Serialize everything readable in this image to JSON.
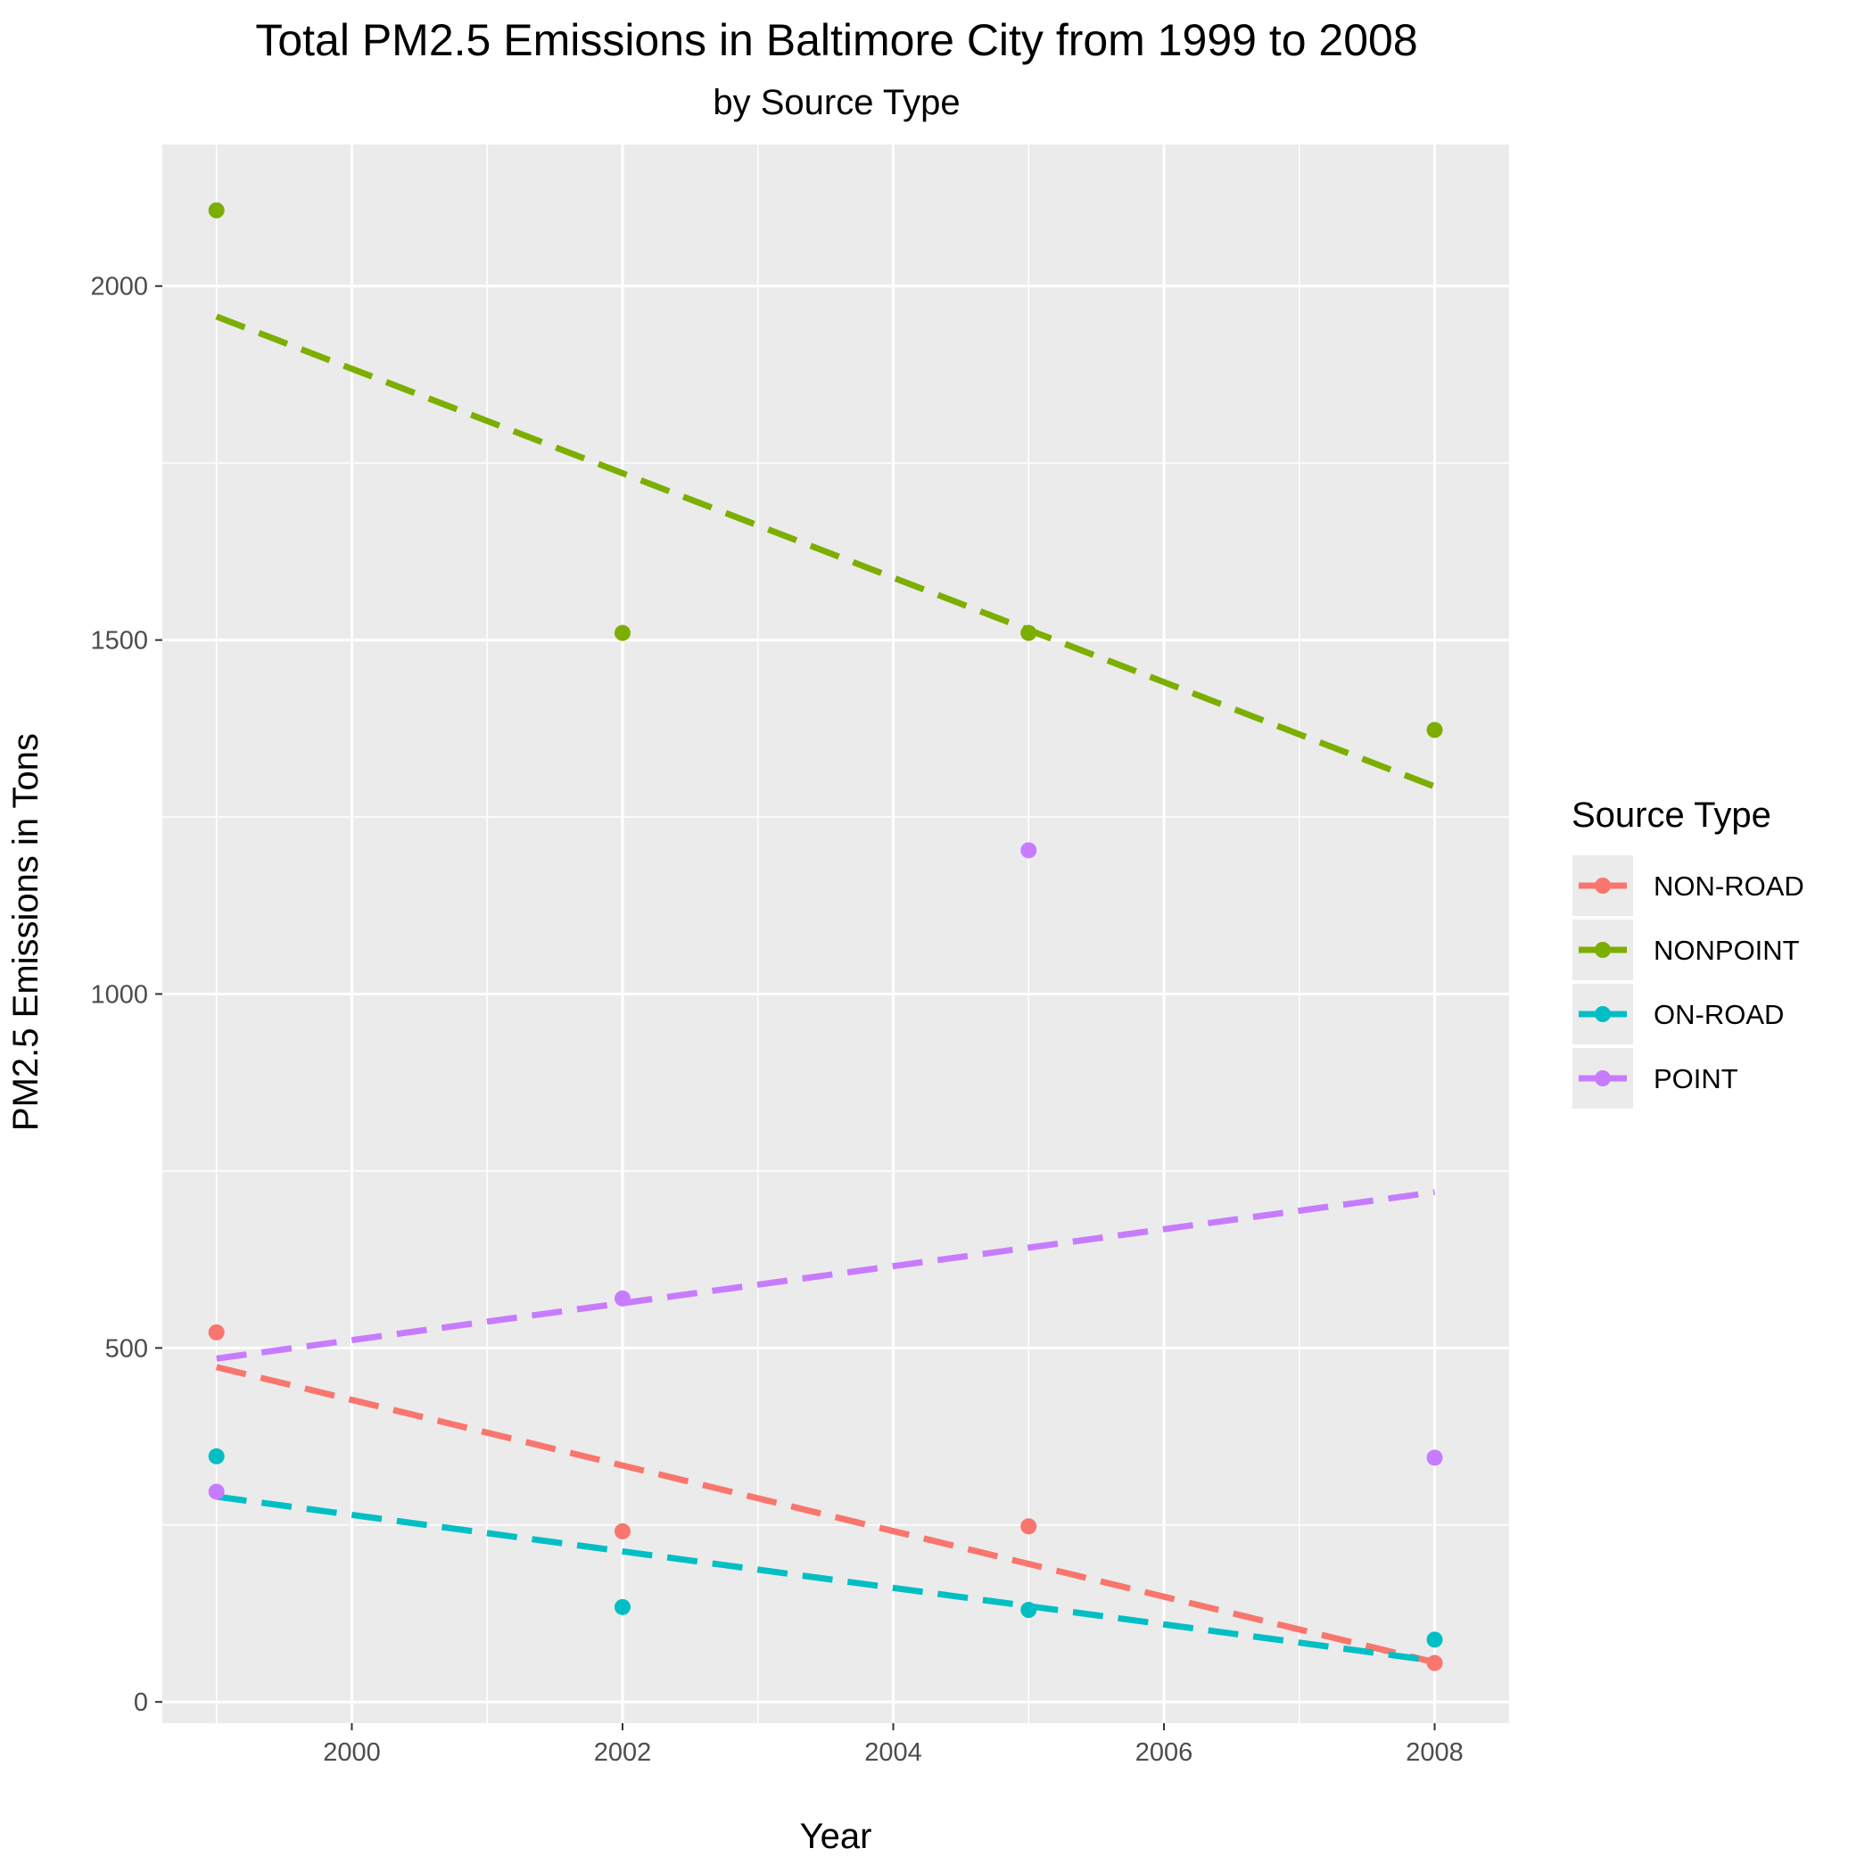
{
  "chart_data": {
    "type": "scatter",
    "title": "Total PM2.5 Emissions in Baltimore City from 1999 to 2008",
    "subtitle": "by Source Type",
    "xlabel": "Year",
    "ylabel": "PM2.5 Emissions in Tons",
    "xlim": [
      1998.6,
      2008.55
    ],
    "ylim": [
      -30,
      2200
    ],
    "x_ticks": [
      2000,
      2002,
      2004,
      2006,
      2008
    ],
    "y_ticks": [
      0,
      500,
      1000,
      1500,
      2000
    ],
    "x_tick_labels": [
      "2000",
      "2002",
      "2004",
      "2006",
      "2008"
    ],
    "y_tick_labels": [
      "0",
      "500",
      "1000",
      "1500",
      "2000"
    ],
    "grid": true,
    "legend": {
      "title": "Source Type",
      "position": "right"
    },
    "trend_line_style": "dashed linear fit",
    "series": [
      {
        "name": "NON-ROAD",
        "color": "#F8766D",
        "x": [
          1999,
          2002,
          2005,
          2008
        ],
        "y": [
          522,
          241,
          248,
          55
        ],
        "trend": [
          473,
          56
        ]
      },
      {
        "name": "NONPOINT",
        "color": "#7CAE00",
        "x": [
          1999,
          2002,
          2005,
          2008
        ],
        "y": [
          2107,
          1510,
          1510,
          1373
        ],
        "trend": [
          1957,
          1293
        ]
      },
      {
        "name": "ON-ROAD",
        "color": "#00BFC4",
        "x": [
          1999,
          2002,
          2005,
          2008
        ],
        "y": [
          347,
          134,
          130,
          88
        ],
        "trend": [
          290,
          58
        ]
      },
      {
        "name": "POINT",
        "color": "#C77CFF",
        "x": [
          1999,
          2002,
          2005,
          2008
        ],
        "y": [
          297,
          570,
          1203,
          345
        ],
        "trend": [
          485,
          720
        ]
      }
    ]
  }
}
